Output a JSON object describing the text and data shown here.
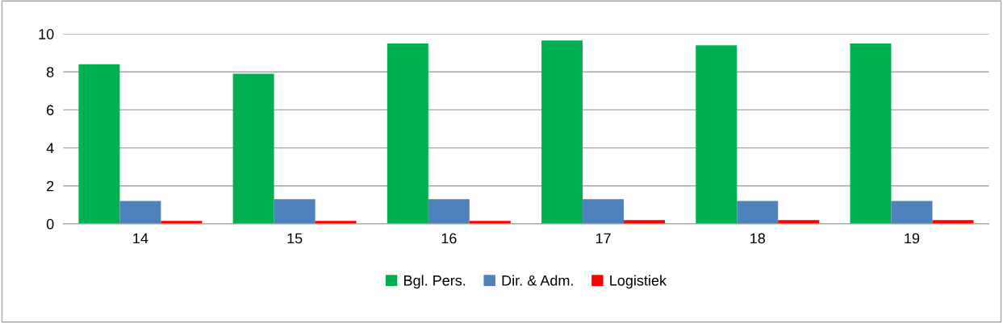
{
  "chart_data": {
    "type": "bar",
    "categories": [
      "14",
      "15",
      "16",
      "17",
      "18",
      "19"
    ],
    "series": [
      {
        "name": "Bgl. Pers.",
        "color": "#00b050",
        "values": [
          8.4,
          7.9,
          9.5,
          9.65,
          9.4,
          9.5
        ]
      },
      {
        "name": "Dir. & Adm.",
        "color": "#4f81bd",
        "values": [
          1.2,
          1.3,
          1.3,
          1.3,
          1.2,
          1.2
        ]
      },
      {
        "name": "Logistiek",
        "color": "#ff0000",
        "values": [
          0.15,
          0.15,
          0.15,
          0.2,
          0.2,
          0.2
        ]
      }
    ],
    "ylim": [
      0,
      10
    ],
    "yticks": [
      0,
      2,
      4,
      6,
      8,
      10
    ],
    "grid": "y",
    "legend": "bottom"
  }
}
